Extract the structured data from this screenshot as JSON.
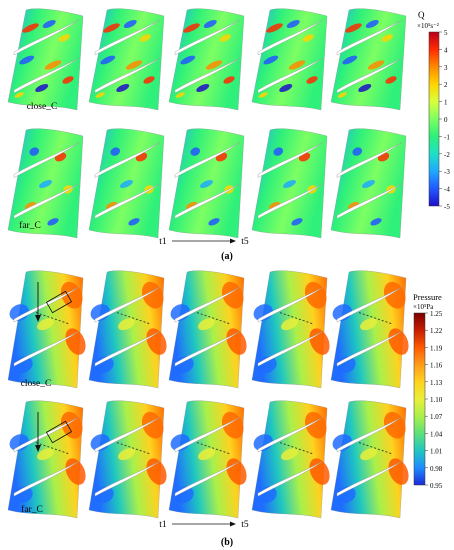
{
  "panel_a": {
    "row_labels": [
      "close_C",
      "far_C"
    ],
    "time_start": "t1",
    "time_end": "t5",
    "caption": "(a)",
    "colorbar": {
      "title": "Q",
      "unit": "×10⁵s⁻²",
      "ticks": [
        "5",
        "4",
        "3",
        "2",
        "1",
        "0",
        "-1",
        "-2",
        "-3",
        "-4",
        "-5"
      ],
      "colors": [
        "#b8001a",
        "#ff2a00",
        "#ff8a00",
        "#ffd400",
        "#d8ff3a",
        "#7dff62",
        "#2ef07a",
        "#1ee0c8",
        "#1fa8ff",
        "#2358ff",
        "#1c10c8"
      ]
    }
  },
  "panel_b": {
    "row_labels": [
      "close_C",
      "far_C"
    ],
    "time_start": "t1",
    "time_end": "t5",
    "caption": "(b)",
    "colorbar": {
      "title": "Pressure",
      "unit": "×10⁵Pa",
      "ticks": [
        "1.25",
        "1.22",
        "1.19",
        "1.16",
        "1.13",
        "1.10",
        "1.07",
        "1.04",
        "1.01",
        "0.98",
        "0.95"
      ],
      "colors": [
        "#7a0000",
        "#c81e00",
        "#ff5a00",
        "#ff9d1a",
        "#ffd21f",
        "#e9ef3a",
        "#aaf04a",
        "#5ee07a",
        "#1fc7c0",
        "#1f8cff",
        "#1c2ad8"
      ]
    }
  }
}
